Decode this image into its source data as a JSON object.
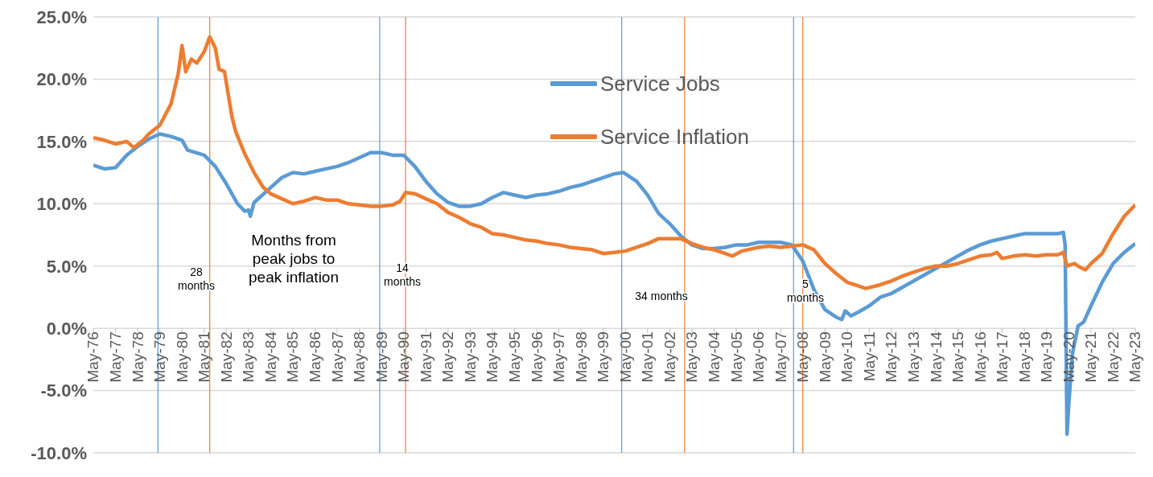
{
  "chart_data": {
    "type": "line",
    "ylim": [
      -10,
      25
    ],
    "yticks": [
      {
        "value": -10,
        "label": "-10.0%"
      },
      {
        "value": -5,
        "label": "-5.0%"
      },
      {
        "value": 0,
        "label": "0.0%"
      },
      {
        "value": 5,
        "label": "5.0%"
      },
      {
        "value": 10,
        "label": "10.0%"
      },
      {
        "value": 15,
        "label": "15.0%"
      },
      {
        "value": 20,
        "label": "20.0%"
      },
      {
        "value": 25,
        "label": "25.0%"
      }
    ],
    "xlim": [
      "1976-05",
      "2023-05"
    ],
    "xticks": [
      {
        "value": "1976-05",
        "label": "May-76"
      },
      {
        "value": "1977-05",
        "label": "May-77"
      },
      {
        "value": "1978-05",
        "label": "May-78"
      },
      {
        "value": "1979-05",
        "label": "May-79"
      },
      {
        "value": "1980-05",
        "label": "May-80"
      },
      {
        "value": "1981-05",
        "label": "May-81"
      },
      {
        "value": "1982-05",
        "label": "May-82"
      },
      {
        "value": "1983-05",
        "label": "May-83"
      },
      {
        "value": "1984-05",
        "label": "May-84"
      },
      {
        "value": "1985-05",
        "label": "May-85"
      },
      {
        "value": "1986-05",
        "label": "May-86"
      },
      {
        "value": "1987-05",
        "label": "May-87"
      },
      {
        "value": "1988-05",
        "label": "May-88"
      },
      {
        "value": "1989-05",
        "label": "May-89"
      },
      {
        "value": "1990-05",
        "label": "May-90"
      },
      {
        "value": "1991-05",
        "label": "May-91"
      },
      {
        "value": "1992-05",
        "label": "May-92"
      },
      {
        "value": "1993-05",
        "label": "May-93"
      },
      {
        "value": "1994-05",
        "label": "May-94"
      },
      {
        "value": "1995-05",
        "label": "May-95"
      },
      {
        "value": "1996-05",
        "label": "May-96"
      },
      {
        "value": "1997-05",
        "label": "May-97"
      },
      {
        "value": "1998-05",
        "label": "May-98"
      },
      {
        "value": "1999-05",
        "label": "May-99"
      },
      {
        "value": "2000-05",
        "label": "May-00"
      },
      {
        "value": "2001-05",
        "label": "May-01"
      },
      {
        "value": "2002-05",
        "label": "May-02"
      },
      {
        "value": "2003-05",
        "label": "May-03"
      },
      {
        "value": "2004-05",
        "label": "May-04"
      },
      {
        "value": "2005-05",
        "label": "May-05"
      },
      {
        "value": "2006-05",
        "label": "May-06"
      },
      {
        "value": "2007-05",
        "label": "May-07"
      },
      {
        "value": "2008-05",
        "label": "May-08"
      },
      {
        "value": "2009-05",
        "label": "May-09"
      },
      {
        "value": "2010-05",
        "label": "May-10"
      },
      {
        "value": "2011-05",
        "label": "May-11"
      },
      {
        "value": "2012-05",
        "label": "May-12"
      },
      {
        "value": "2013-05",
        "label": "May-13"
      },
      {
        "value": "2014-05",
        "label": "May-14"
      },
      {
        "value": "2015-05",
        "label": "May-15"
      },
      {
        "value": "2016-05",
        "label": "May-16"
      },
      {
        "value": "2017-05",
        "label": "May-17"
      },
      {
        "value": "2018-05",
        "label": "May-18"
      },
      {
        "value": "2019-05",
        "label": "May-19"
      },
      {
        "value": "2020-05",
        "label": "May-20"
      },
      {
        "value": "2021-05",
        "label": "May-21"
      },
      {
        "value": "2022-05",
        "label": "May-22"
      },
      {
        "value": "2023-05",
        "label": "May-23"
      }
    ],
    "grid": "y",
    "legend": "top",
    "marker": "none",
    "line_style": "solid",
    "series": [
      {
        "name": "Service Jobs",
        "color": "#5b9bd5",
        "x": [
          "1976-05",
          "1976-11",
          "1977-05",
          "1977-11",
          "1978-05",
          "1978-11",
          "1979-05",
          "1979-11",
          "1980-05",
          "1980-08",
          "1981-05",
          "1981-11",
          "1982-05",
          "1982-11",
          "1983-03",
          "1983-05",
          "1983-06",
          "1983-08",
          "1984-05",
          "1984-11",
          "1985-05",
          "1985-11",
          "1986-05",
          "1986-11",
          "1987-05",
          "1987-11",
          "1988-05",
          "1988-11",
          "1989-05",
          "1989-11",
          "1990-05",
          "1990-11",
          "1991-05",
          "1991-11",
          "1992-05",
          "1992-11",
          "1993-05",
          "1993-11",
          "1994-05",
          "1994-11",
          "1995-05",
          "1995-11",
          "1996-05",
          "1996-11",
          "1997-05",
          "1997-11",
          "1998-05",
          "1998-11",
          "1999-05",
          "1999-11",
          "2000-04",
          "2000-11",
          "2001-05",
          "2001-11",
          "2002-05",
          "2002-11",
          "2003-05",
          "2003-11",
          "2004-05",
          "2004-11",
          "2005-05",
          "2005-11",
          "2006-05",
          "2006-11",
          "2007-05",
          "2007-11",
          "2008-05",
          "2008-11",
          "2009-05",
          "2009-11",
          "2010-02",
          "2010-04",
          "2010-07",
          "2010-11",
          "2011-05",
          "2011-11",
          "2012-05",
          "2012-11",
          "2013-05",
          "2013-11",
          "2014-05",
          "2014-11",
          "2015-05",
          "2015-11",
          "2016-05",
          "2016-11",
          "2017-05",
          "2017-11",
          "2018-05",
          "2018-11",
          "2019-05",
          "2019-11",
          "2020-02",
          "2020-03",
          "2020-04",
          "2020-05",
          "2020-07",
          "2020-10",
          "2021-01",
          "2021-05",
          "2021-11",
          "2022-05",
          "2022-11",
          "2023-05"
        ],
        "values": [
          13.1,
          12.8,
          12.9,
          13.9,
          14.6,
          15.2,
          15.6,
          15.4,
          15.1,
          14.3,
          13.9,
          13.0,
          11.6,
          10.0,
          9.4,
          9.5,
          9.0,
          10.1,
          11.3,
          12.1,
          12.5,
          12.4,
          12.6,
          12.8,
          13.0,
          13.3,
          13.7,
          14.1,
          14.1,
          13.9,
          13.9,
          13.0,
          11.8,
          10.8,
          10.1,
          9.8,
          9.8,
          10.0,
          10.5,
          10.9,
          10.7,
          10.5,
          10.7,
          10.8,
          11.0,
          11.3,
          11.5,
          11.8,
          12.1,
          12.4,
          12.5,
          11.8,
          10.7,
          9.2,
          8.4,
          7.4,
          6.7,
          6.4,
          6.4,
          6.5,
          6.7,
          6.7,
          6.9,
          6.9,
          6.9,
          6.7,
          5.4,
          3.1,
          1.5,
          0.9,
          0.7,
          1.4,
          1.0,
          1.3,
          1.8,
          2.5,
          2.8,
          3.3,
          3.8,
          4.3,
          4.8,
          5.3,
          5.8,
          6.3,
          6.7,
          7.0,
          7.2,
          7.4,
          7.6,
          7.6,
          7.6,
          7.6,
          7.7,
          6.7,
          -8.5,
          -6.0,
          -2.0,
          0.2,
          0.5,
          1.8,
          3.7,
          5.2,
          6.1,
          6.8
        ]
      },
      {
        "name": "Service Inflation",
        "color": "#ed7d31",
        "x": [
          "1976-05",
          "1976-11",
          "1977-05",
          "1977-11",
          "1978-03",
          "1978-08",
          "1978-11",
          "1979-05",
          "1979-11",
          "1980-03",
          "1980-05",
          "1980-07",
          "1980-10",
          "1981-01",
          "1981-05",
          "1981-08",
          "1981-11",
          "1982-01",
          "1982-04",
          "1982-08",
          "1982-10",
          "1983-03",
          "1983-08",
          "1984-01",
          "1984-05",
          "1984-11",
          "1985-05",
          "1985-11",
          "1986-05",
          "1986-11",
          "1987-05",
          "1987-11",
          "1988-05",
          "1988-11",
          "1989-05",
          "1989-11",
          "1990-03",
          "1990-06",
          "1990-11",
          "1991-05",
          "1991-11",
          "1992-05",
          "1992-11",
          "1993-05",
          "1993-11",
          "1994-05",
          "1994-11",
          "1995-05",
          "1995-11",
          "1996-05",
          "1996-11",
          "1997-05",
          "1997-11",
          "1998-05",
          "1998-11",
          "1999-05",
          "1999-11",
          "2000-05",
          "2000-11",
          "2001-05",
          "2001-11",
          "2002-05",
          "2002-11",
          "2003-05",
          "2003-11",
          "2004-05",
          "2004-11",
          "2005-03",
          "2005-08",
          "2006-05",
          "2006-11",
          "2007-05",
          "2007-11",
          "2008-05",
          "2008-11",
          "2009-05",
          "2009-11",
          "2010-05",
          "2010-11",
          "2011-03",
          "2011-11",
          "2012-05",
          "2012-11",
          "2013-05",
          "2013-11",
          "2014-05",
          "2014-11",
          "2015-05",
          "2015-11",
          "2016-05",
          "2016-11",
          "2017-02",
          "2017-05",
          "2017-11",
          "2018-05",
          "2018-11",
          "2019-05",
          "2019-11",
          "2020-02",
          "2020-04",
          "2020-08",
          "2020-11",
          "2021-02",
          "2021-05",
          "2021-11",
          "2022-05",
          "2022-11",
          "2023-05"
        ],
        "values": [
          15.3,
          15.1,
          14.8,
          15.0,
          14.5,
          15.1,
          15.6,
          16.3,
          18.0,
          20.5,
          22.7,
          20.6,
          21.6,
          21.3,
          22.2,
          23.4,
          22.5,
          20.8,
          20.6,
          17.0,
          15.8,
          14.0,
          12.5,
          11.3,
          10.8,
          10.4,
          10.0,
          10.2,
          10.5,
          10.3,
          10.3,
          10.0,
          9.9,
          9.8,
          9.8,
          9.9,
          10.2,
          10.9,
          10.8,
          10.4,
          10.0,
          9.3,
          8.9,
          8.4,
          8.1,
          7.6,
          7.5,
          7.3,
          7.1,
          7.0,
          6.8,
          6.7,
          6.5,
          6.4,
          6.3,
          6.0,
          6.1,
          6.2,
          6.5,
          6.8,
          7.2,
          7.2,
          7.2,
          6.8,
          6.5,
          6.3,
          6.0,
          5.8,
          6.2,
          6.5,
          6.6,
          6.5,
          6.6,
          6.7,
          6.3,
          5.2,
          4.4,
          3.7,
          3.4,
          3.2,
          3.5,
          3.8,
          4.2,
          4.5,
          4.8,
          5.0,
          5.0,
          5.2,
          5.5,
          5.8,
          5.9,
          6.1,
          5.6,
          5.8,
          5.9,
          5.8,
          5.9,
          5.9,
          6.1,
          5.0,
          5.2,
          4.9,
          4.7,
          5.2,
          6.0,
          7.6,
          9.0,
          9.9
        ]
      }
    ],
    "ref_lines": [
      {
        "axis": "x",
        "value": "1979-04",
        "color": "#5b9bd5"
      },
      {
        "axis": "x",
        "value": "1981-08",
        "color": "#ed7d31"
      },
      {
        "axis": "x",
        "value": "1989-04",
        "color": "#5b9bd5"
      },
      {
        "axis": "x",
        "value": "1990-06",
        "color": "#ed7d31"
      },
      {
        "axis": "x",
        "value": "2000-03",
        "color": "#5b9bd5"
      },
      {
        "axis": "x",
        "value": "2003-01",
        "color": "#ed7d31"
      },
      {
        "axis": "x",
        "value": "2007-12",
        "color": "#5b9bd5"
      },
      {
        "axis": "x",
        "value": "2008-05",
        "color": "#ed7d31"
      }
    ],
    "annotations": [
      "28\nmonths",
      "Months from\npeak jobs to\npeak inflation",
      "14\nmonths",
      "34 months",
      "5\nmonths"
    ]
  }
}
